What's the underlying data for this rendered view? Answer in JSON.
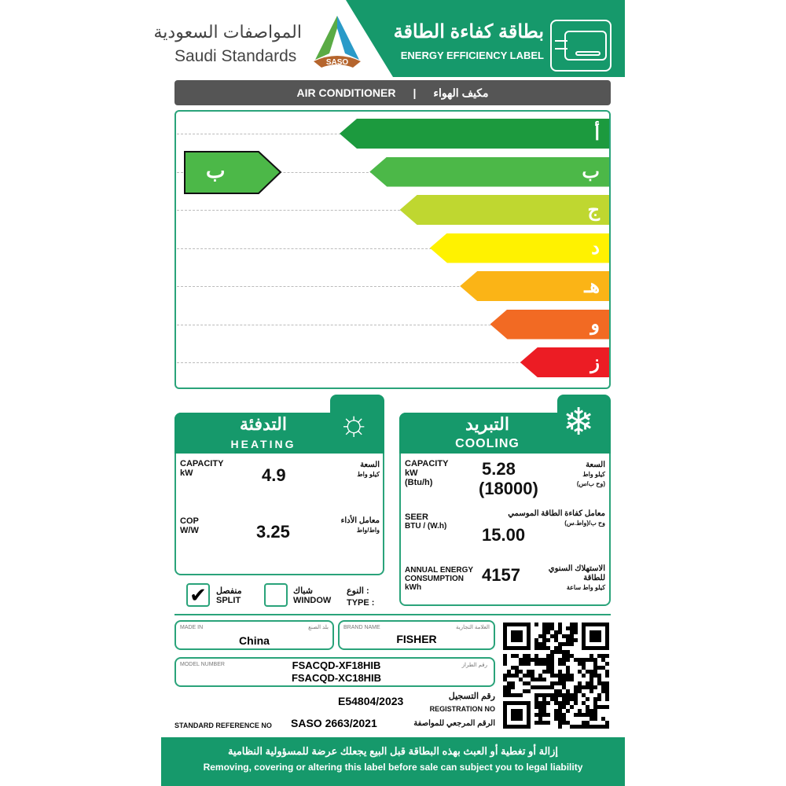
{
  "header": {
    "org_ar": "المواصفات السعودية",
    "org_en": "Saudi Standards",
    "logo_text": "SASO",
    "title_ar": "بطاقة كفاءة الطاقة",
    "title_en": "ENERGY EFFICIENCY LABEL"
  },
  "product": {
    "en": "AIR CONDITIONER",
    "ar": "مكيف الهواء"
  },
  "scale": {
    "classes": [
      "أ",
      "ب",
      "ج",
      "د",
      "هـ",
      "و",
      "ز"
    ],
    "colors": [
      "#1c9a3e",
      "#4cb848",
      "#bfd730",
      "#fff200",
      "#fbb416",
      "#f26a23",
      "#ec1c24"
    ],
    "rating": "ب",
    "rating_color": "#4cb848"
  },
  "heating": {
    "title_ar": "التدفئة",
    "title_en": "HEATING",
    "capacity_label": "CAPACITY",
    "capacity_unit": "kW",
    "capacity_ar": "السعة",
    "capacity_unit_ar": "كيلو واط",
    "capacity": "4.9",
    "cop_label": "COP",
    "cop_unit": "W/W",
    "cop_ar": "معامل الأداء",
    "cop_unit_ar": "واط/واط",
    "cop": "3.25"
  },
  "type": {
    "label_ar": "النوع :",
    "label_en": "TYPE :",
    "split_ar": "منفصل",
    "split_en": "SPLIT",
    "window_ar": "شباك",
    "window_en": "WINDOW",
    "split_checked": true,
    "check": "✔"
  },
  "cooling": {
    "title_ar": "التبريد",
    "title_en": "COOLING",
    "capacity_label": "CAPACITY",
    "capacity_unit": "kW",
    "capacity_unit2": "(Btu/h)",
    "capacity_ar": "السعة",
    "capacity_unit_ar": "كيلو واط",
    "capacity_unit2_ar": "(وح ب/س)",
    "capacity": "5.28",
    "capacity_btu": "(18000)",
    "seer_label": "SEER",
    "seer_unit": "BTU / (W.h)",
    "seer_ar": "معامل كفاءة الطاقة الموسمي",
    "seer_unit_ar": "وح ب/(واط.س)",
    "seer": "15.00",
    "aec_label1": "ANNUAL ENERGY",
    "aec_label2": "CONSUMPTION",
    "aec_unit": "kWh",
    "aec_ar1": "الاستهلاك السنوي",
    "aec_ar2": "للطاقة",
    "aec_unit_ar": "كيلو واط ساعة",
    "aec": "4157"
  },
  "info": {
    "made_in_label": "MADE IN",
    "made_in_ar": "بلد الصنع",
    "made_in": "China",
    "brand_label": "BRAND NAME",
    "brand_ar": "العلامة التجارية",
    "brand": "FISHER",
    "model_label": "MODEL NUMBER",
    "model_ar": "رقم الطراز",
    "model1": "FSACQD-XF18HIB",
    "model2": "FSACQD-XC18HIB",
    "reg_ar": "رقم التسجيل",
    "reg_en": "REGISTRATION NO",
    "reg": "E54804/2023",
    "std_en": "STANDARD REFERENCE NO",
    "std_ar": "الرقم المرجعي للمواصفة",
    "std": "SASO 2663/2021"
  },
  "footer": {
    "ar": "إزالة أو تغطية أو العبث بهذه البطاقة قبل البيع يجعلك عرضة للمسؤولية النظامية",
    "en": "Removing, covering or altering this label before sale can subject you to legal liability"
  }
}
